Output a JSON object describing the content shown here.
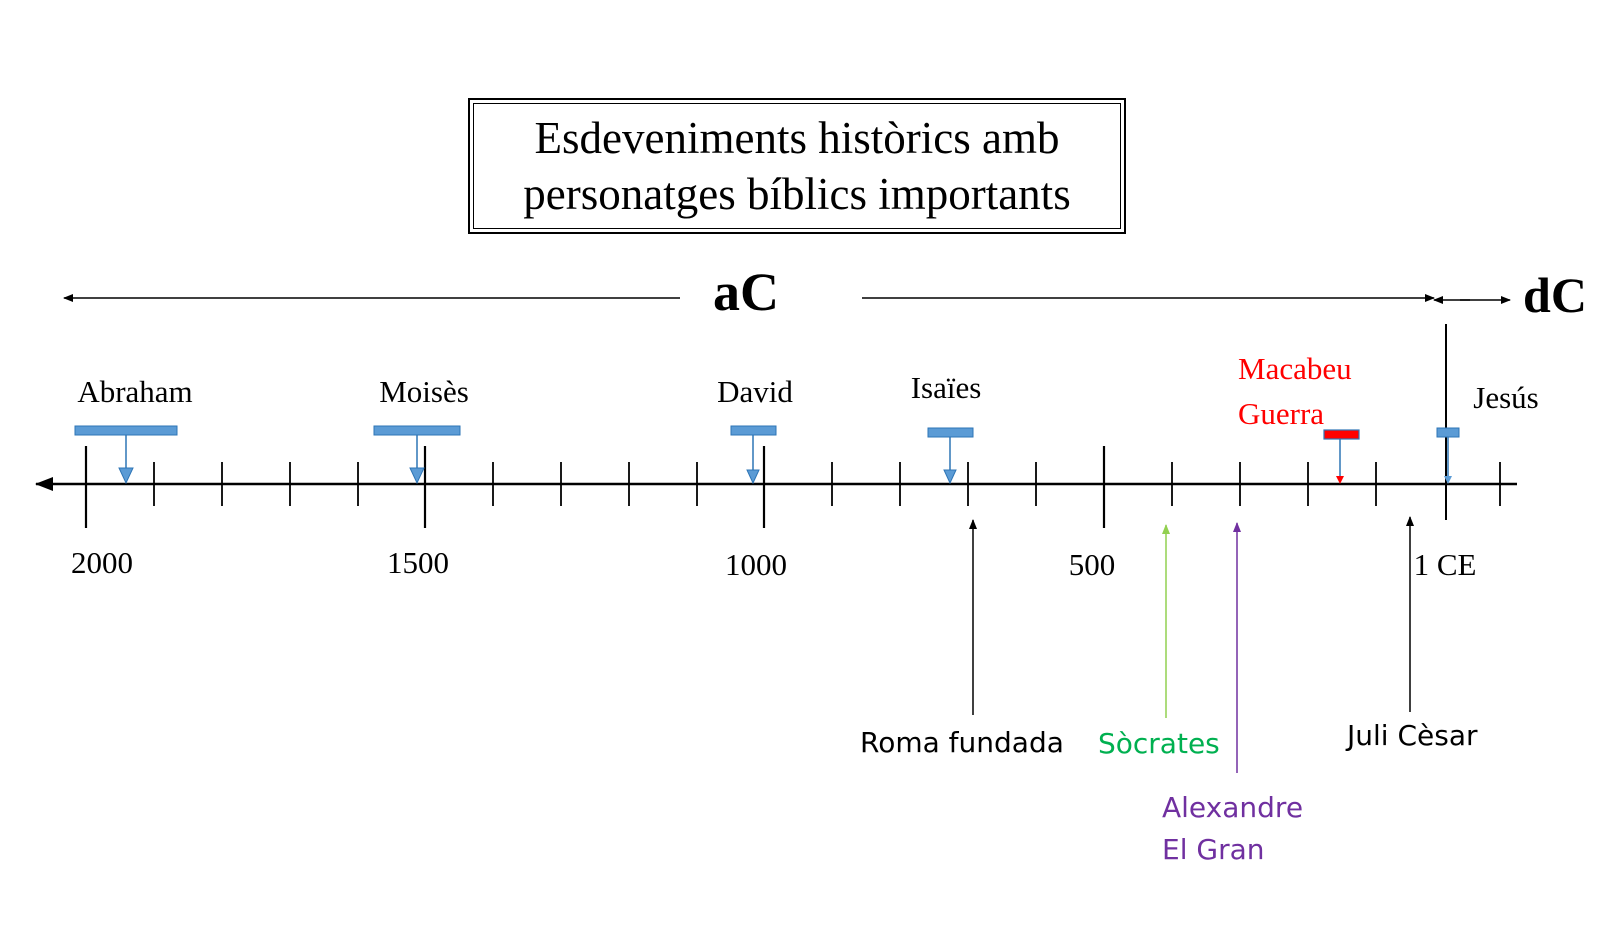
{
  "title": {
    "line1": "Esdeveniments històrics amb",
    "line2": "personatges bíblics importants"
  },
  "eras": {
    "bce_label": "aC",
    "ce_label": "dC"
  },
  "axis": {
    "tick_labels": [
      "2000",
      "1500",
      "1000",
      "500",
      "1 CE"
    ]
  },
  "figures": [
    {
      "name": "Abraham",
      "color": "#000000"
    },
    {
      "name": "Moisès",
      "color": "#000000"
    },
    {
      "name": "David",
      "color": "#000000"
    },
    {
      "name": "Isaïes",
      "color": "#000000"
    },
    {
      "name_line1": "Macabeu",
      "name_line2": "Guerra",
      "color": "#ff0000"
    },
    {
      "name": "Jesús",
      "color": "#000000"
    }
  ],
  "events": [
    {
      "label": "Roma fundada",
      "color": "#000000"
    },
    {
      "label": "Sòcrates",
      "color": "#00b050"
    },
    {
      "label_line1": "Alexandre",
      "label_line2": "El Gran",
      "color": "#7030a0"
    },
    {
      "label": "Juli Cèsar",
      "color": "#000000"
    }
  ],
  "colors": {
    "bar_fill": "#5b9bd5",
    "bar_stroke": "#2e75b6",
    "maccabee_bar": "#ff0000",
    "socrates_arrow": "#92d050",
    "alexander_arrow": "#7030a0"
  }
}
